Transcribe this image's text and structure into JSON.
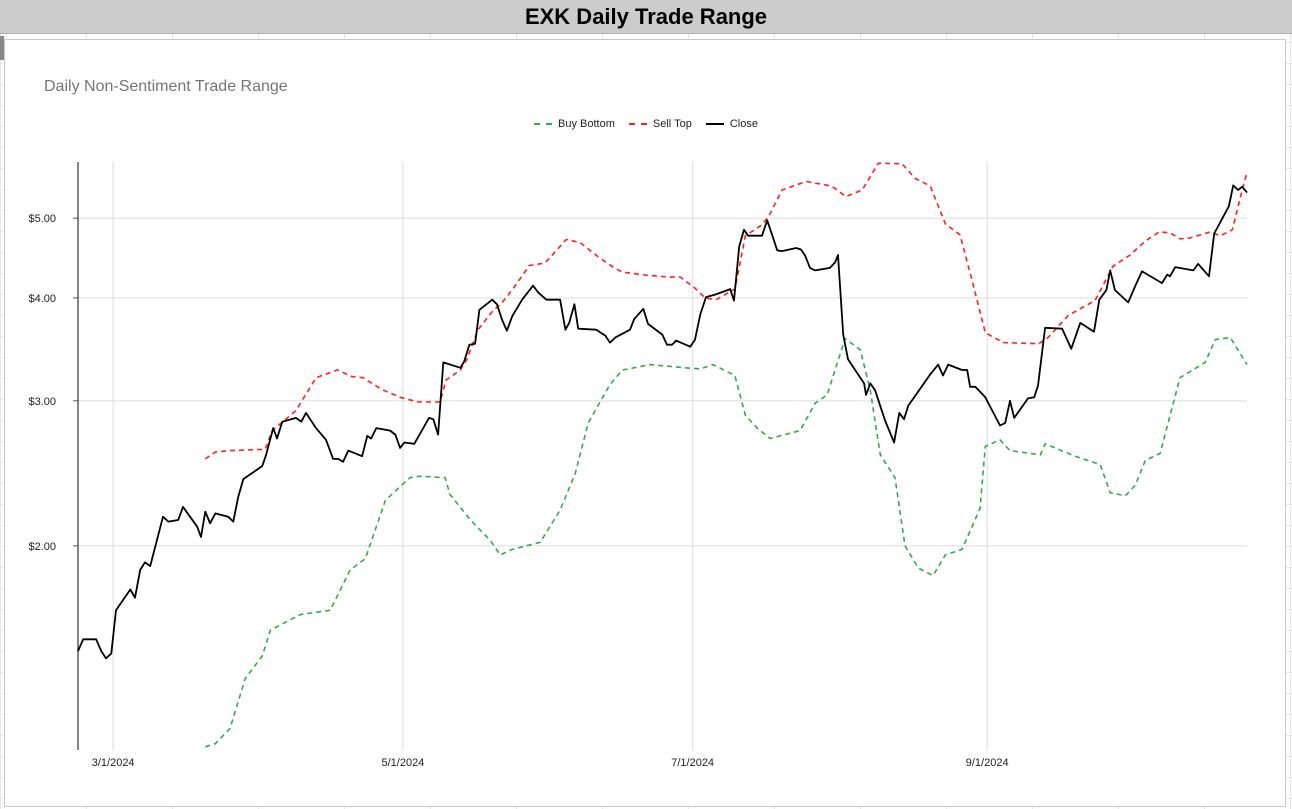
{
  "header": {
    "title": "EXK Daily Trade Range"
  },
  "chart_data": {
    "type": "line",
    "title": "Daily Non-Sentiment Trade Range",
    "xlabel": "",
    "ylabel": "",
    "x_units": "days since 3/1/2024",
    "xlim": [
      -7.4,
      238.7
    ],
    "ylim": [
      1.13,
      5.85
    ],
    "y_scale": "log",
    "grid": true,
    "legend_position": "top",
    "x_ticks": [
      {
        "value": 0,
        "label": "3/1/2024"
      },
      {
        "value": 61,
        "label": "5/1/2024"
      },
      {
        "value": 122,
        "label": "7/1/2024"
      },
      {
        "value": 184,
        "label": "9/1/2024"
      }
    ],
    "y_ticks": [
      {
        "value": 2,
        "label": "$2.00"
      },
      {
        "value": 3,
        "label": "$3.00"
      },
      {
        "value": 4,
        "label": "$4.00"
      },
      {
        "value": 5,
        "label": "$5.00"
      }
    ],
    "series": [
      {
        "name": "Buy Bottom",
        "color": "#34a853",
        "dash": true,
        "points": [
          [
            19.4,
            1.14
          ],
          [
            21.5,
            1.15
          ],
          [
            24.6,
            1.2
          ],
          [
            27.8,
            1.38
          ],
          [
            31.4,
            1.47
          ],
          [
            33.1,
            1.58
          ],
          [
            39.4,
            1.65
          ],
          [
            45.7,
            1.67
          ],
          [
            49.9,
            1.87
          ],
          [
            53.1,
            1.93
          ],
          [
            57.3,
            2.27
          ],
          [
            60.4,
            2.36
          ],
          [
            62.5,
            2.42
          ],
          [
            64.6,
            2.43
          ],
          [
            69.9,
            2.42
          ],
          [
            70.9,
            2.31
          ],
          [
            75.2,
            2.15
          ],
          [
            79.4,
            2.03
          ],
          [
            81.5,
            1.95
          ],
          [
            84.0,
            1.98
          ],
          [
            89.9,
            2.02
          ],
          [
            94.1,
            2.21
          ],
          [
            97.3,
            2.45
          ],
          [
            100.0,
            2.82
          ],
          [
            104.6,
            3.14
          ],
          [
            107.2,
            3.27
          ],
          [
            113.1,
            3.32
          ],
          [
            120.4,
            3.29
          ],
          [
            123.6,
            3.28
          ],
          [
            126.3,
            3.32
          ],
          [
            130.9,
            3.22
          ],
          [
            133.1,
            2.88
          ],
          [
            135.6,
            2.78
          ],
          [
            138.3,
            2.7
          ],
          [
            144.6,
            2.76
          ],
          [
            147.8,
            2.98
          ],
          [
            150.3,
            3.05
          ],
          [
            154.1,
            3.57
          ],
          [
            157.3,
            3.46
          ],
          [
            159.4,
            3.09
          ],
          [
            161.5,
            2.58
          ],
          [
            164.6,
            2.42
          ],
          [
            166.7,
            2.0
          ],
          [
            169.5,
            1.88
          ],
          [
            172.6,
            1.84
          ],
          [
            175.2,
            1.95
          ],
          [
            178.7,
            1.98
          ],
          [
            182.5,
            2.22
          ],
          [
            183.6,
            2.64
          ],
          [
            186.7,
            2.69
          ],
          [
            188.8,
            2.61
          ],
          [
            195.2,
            2.58
          ],
          [
            196.2,
            2.66
          ],
          [
            202.5,
            2.57
          ],
          [
            207.8,
            2.51
          ],
          [
            209.9,
            2.32
          ],
          [
            213.1,
            2.3
          ],
          [
            215.2,
            2.37
          ],
          [
            217.3,
            2.54
          ],
          [
            220.4,
            2.59
          ],
          [
            224.6,
            3.2
          ],
          [
            229.9,
            3.34
          ],
          [
            232.0,
            3.56
          ],
          [
            235.2,
            3.58
          ],
          [
            238.7,
            3.32
          ]
        ]
      },
      {
        "name": "Sell Top",
        "color": "#ff2020",
        "dash": true,
        "points": [
          [
            19.4,
            2.55
          ],
          [
            21.5,
            2.6
          ],
          [
            24.6,
            2.61
          ],
          [
            32.0,
            2.62
          ],
          [
            33.5,
            2.76
          ],
          [
            38.5,
            2.92
          ],
          [
            42.7,
            3.2
          ],
          [
            47.2,
            3.27
          ],
          [
            50.3,
            3.21
          ],
          [
            52.6,
            3.2
          ],
          [
            56.4,
            3.1
          ],
          [
            60.4,
            3.03
          ],
          [
            64.2,
            2.99
          ],
          [
            68.8,
            2.99
          ],
          [
            70.1,
            3.18
          ],
          [
            73.1,
            3.27
          ],
          [
            74.5,
            3.37
          ],
          [
            76.8,
            3.66
          ],
          [
            79.8,
            3.85
          ],
          [
            81.9,
            3.95
          ],
          [
            84.0,
            4.09
          ],
          [
            87.6,
            4.38
          ],
          [
            90.9,
            4.41
          ],
          [
            95.4,
            4.71
          ],
          [
            98.3,
            4.67
          ],
          [
            102.5,
            4.47
          ],
          [
            105.5,
            4.35
          ],
          [
            107.2,
            4.3
          ],
          [
            112.6,
            4.26
          ],
          [
            117.3,
            4.24
          ],
          [
            119.4,
            4.24
          ],
          [
            122.5,
            4.11
          ],
          [
            124.6,
            4.0
          ],
          [
            126.9,
            3.98
          ],
          [
            130.9,
            4.1
          ],
          [
            133.1,
            4.76
          ],
          [
            136.2,
            4.89
          ],
          [
            137.9,
            5.01
          ],
          [
            140.8,
            5.41
          ],
          [
            145.9,
            5.54
          ],
          [
            151.2,
            5.47
          ],
          [
            154.3,
            5.31
          ],
          [
            157.7,
            5.41
          ],
          [
            161.1,
            5.83
          ],
          [
            166.1,
            5.82
          ],
          [
            168.8,
            5.59
          ],
          [
            172.0,
            5.47
          ],
          [
            175.2,
            4.92
          ],
          [
            178.3,
            4.77
          ],
          [
            181.1,
            4.14
          ],
          [
            183.6,
            3.63
          ],
          [
            187.4,
            3.53
          ],
          [
            194.9,
            3.52
          ],
          [
            196.8,
            3.58
          ],
          [
            201.1,
            3.81
          ],
          [
            206.7,
            3.97
          ],
          [
            210.5,
            4.37
          ],
          [
            214.1,
            4.51
          ],
          [
            217.3,
            4.69
          ],
          [
            220.2,
            4.81
          ],
          [
            222.5,
            4.8
          ],
          [
            224.6,
            4.72
          ],
          [
            226.7,
            4.73
          ],
          [
            230.9,
            4.81
          ],
          [
            233.1,
            4.76
          ],
          [
            235.6,
            4.84
          ],
          [
            237.7,
            5.41
          ],
          [
            238.7,
            5.68
          ]
        ]
      },
      {
        "name": "Close",
        "color": "#000000",
        "dash": false,
        "points": [
          [
            -7.4,
            1.49
          ],
          [
            -6.3,
            1.54
          ],
          [
            -3.6,
            1.54
          ],
          [
            -2.5,
            1.49
          ],
          [
            -1.5,
            1.46
          ],
          [
            -0.4,
            1.48
          ],
          [
            0.6,
            1.67
          ],
          [
            3.6,
            1.77
          ],
          [
            4.6,
            1.73
          ],
          [
            5.7,
            1.87
          ],
          [
            6.7,
            1.91
          ],
          [
            7.8,
            1.89
          ],
          [
            10.5,
            2.17
          ],
          [
            11.6,
            2.14
          ],
          [
            13.7,
            2.15
          ],
          [
            14.7,
            2.23
          ],
          [
            17.7,
            2.11
          ],
          [
            18.5,
            2.05
          ],
          [
            19.4,
            2.2
          ],
          [
            20.4,
            2.13
          ],
          [
            21.5,
            2.19
          ],
          [
            24.2,
            2.17
          ],
          [
            25.3,
            2.14
          ],
          [
            26.3,
            2.29
          ],
          [
            27.4,
            2.41
          ],
          [
            31.4,
            2.5
          ],
          [
            32.2,
            2.58
          ],
          [
            33.7,
            2.78
          ],
          [
            34.5,
            2.7
          ],
          [
            35.6,
            2.83
          ],
          [
            38.5,
            2.86
          ],
          [
            39.6,
            2.83
          ],
          [
            40.6,
            2.9
          ],
          [
            42.7,
            2.78
          ],
          [
            44.8,
            2.69
          ],
          [
            46.3,
            2.55
          ],
          [
            47.4,
            2.55
          ],
          [
            48.4,
            2.53
          ],
          [
            49.5,
            2.61
          ],
          [
            52.4,
            2.57
          ],
          [
            53.5,
            2.72
          ],
          [
            54.3,
            2.7
          ],
          [
            55.4,
            2.78
          ],
          [
            58.3,
            2.76
          ],
          [
            59.4,
            2.73
          ],
          [
            60.4,
            2.63
          ],
          [
            61.3,
            2.67
          ],
          [
            63.4,
            2.66
          ],
          [
            66.5,
            2.86
          ],
          [
            67.4,
            2.85
          ],
          [
            68.4,
            2.73
          ],
          [
            69.5,
            3.34
          ],
          [
            73.1,
            3.29
          ],
          [
            73.9,
            3.35
          ],
          [
            75.0,
            3.51
          ],
          [
            76.2,
            3.52
          ],
          [
            77.1,
            3.87
          ],
          [
            79.8,
            3.98
          ],
          [
            80.8,
            3.93
          ],
          [
            81.9,
            3.76
          ],
          [
            82.9,
            3.65
          ],
          [
            84.0,
            3.8
          ],
          [
            86.1,
            3.98
          ],
          [
            88.4,
            4.14
          ],
          [
            89.5,
            4.06
          ],
          [
            91.2,
            3.98
          ],
          [
            94.1,
            3.98
          ],
          [
            95.2,
            3.66
          ],
          [
            96.0,
            3.73
          ],
          [
            97.1,
            3.93
          ],
          [
            97.9,
            3.67
          ],
          [
            101.7,
            3.66
          ],
          [
            103.6,
            3.6
          ],
          [
            104.6,
            3.53
          ],
          [
            105.7,
            3.58
          ],
          [
            108.8,
            3.66
          ],
          [
            109.7,
            3.77
          ],
          [
            111.6,
            3.88
          ],
          [
            112.6,
            3.72
          ],
          [
            115.6,
            3.61
          ],
          [
            116.6,
            3.51
          ],
          [
            117.7,
            3.51
          ],
          [
            118.5,
            3.55
          ],
          [
            121.5,
            3.49
          ],
          [
            122.5,
            3.56
          ],
          [
            123.6,
            3.82
          ],
          [
            124.8,
            4.01
          ],
          [
            126.9,
            4.04
          ],
          [
            129.9,
            4.1
          ],
          [
            130.7,
            3.97
          ],
          [
            131.8,
            4.62
          ],
          [
            132.8,
            4.84
          ],
          [
            133.7,
            4.76
          ],
          [
            136.6,
            4.76
          ],
          [
            137.7,
            4.97
          ],
          [
            138.9,
            4.74
          ],
          [
            139.8,
            4.57
          ],
          [
            140.8,
            4.56
          ],
          [
            143.8,
            4.6
          ],
          [
            144.8,
            4.58
          ],
          [
            145.7,
            4.5
          ],
          [
            146.7,
            4.35
          ],
          [
            147.8,
            4.32
          ],
          [
            150.9,
            4.35
          ],
          [
            152.0,
            4.42
          ],
          [
            152.6,
            4.51
          ],
          [
            153.7,
            3.61
          ],
          [
            154.7,
            3.37
          ],
          [
            157.3,
            3.2
          ],
          [
            158.1,
            3.15
          ],
          [
            158.5,
            3.05
          ],
          [
            159.4,
            3.15
          ],
          [
            160.4,
            3.09
          ],
          [
            162.5,
            2.84
          ],
          [
            164.4,
            2.67
          ],
          [
            165.5,
            2.9
          ],
          [
            166.5,
            2.85
          ],
          [
            167.4,
            2.96
          ],
          [
            168.8,
            3.04
          ],
          [
            172.0,
            3.23
          ],
          [
            173.7,
            3.32
          ],
          [
            174.7,
            3.22
          ],
          [
            175.8,
            3.32
          ],
          [
            178.7,
            3.27
          ],
          [
            179.8,
            3.27
          ],
          [
            180.4,
            3.12
          ],
          [
            181.5,
            3.12
          ],
          [
            183.6,
            3.03
          ],
          [
            186.7,
            2.8
          ],
          [
            187.8,
            2.82
          ],
          [
            188.8,
            3.0
          ],
          [
            189.7,
            2.86
          ],
          [
            192.6,
            3.02
          ],
          [
            193.9,
            3.03
          ],
          [
            194.7,
            3.13
          ],
          [
            196.2,
            3.68
          ],
          [
            199.8,
            3.67
          ],
          [
            201.7,
            3.47
          ],
          [
            203.6,
            3.73
          ],
          [
            206.5,
            3.64
          ],
          [
            207.6,
            3.98
          ],
          [
            209.1,
            4.09
          ],
          [
            209.9,
            4.32
          ],
          [
            210.9,
            4.09
          ],
          [
            213.7,
            3.95
          ],
          [
            215.2,
            4.14
          ],
          [
            216.6,
            4.31
          ],
          [
            220.8,
            4.17
          ],
          [
            221.9,
            4.27
          ],
          [
            222.5,
            4.25
          ],
          [
            223.6,
            4.36
          ],
          [
            227.4,
            4.32
          ],
          [
            228.4,
            4.4
          ],
          [
            230.7,
            4.25
          ],
          [
            231.8,
            4.79
          ],
          [
            234.9,
            5.17
          ],
          [
            235.8,
            5.48
          ],
          [
            236.8,
            5.41
          ],
          [
            237.7,
            5.46
          ],
          [
            238.7,
            5.37
          ]
        ]
      }
    ]
  }
}
